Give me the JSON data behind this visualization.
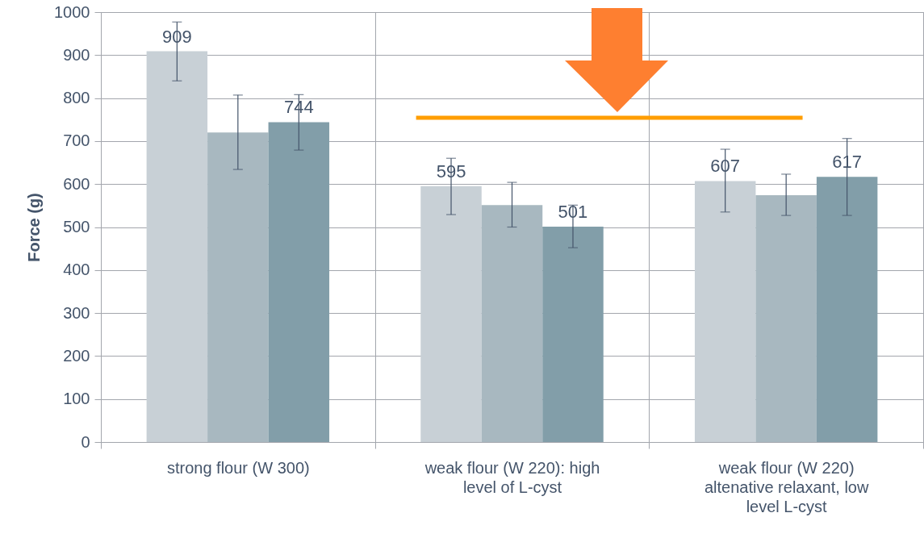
{
  "chart_data": {
    "type": "bar",
    "ylabel": "Force (g)",
    "categories": [
      "strong flour (W 300)",
      "weak flour (W 220): high level of L-cyst",
      "weak flour (W 220) altenative relaxant, low level L-cyst"
    ],
    "series": [
      {
        "color": "#c8d0d6",
        "values": [
          909,
          595,
          607
        ],
        "value_labels": [
          "909",
          "595",
          "607"
        ],
        "errors": [
          [
            840,
            977
          ],
          [
            529,
            660
          ],
          [
            535,
            681
          ]
        ]
      },
      {
        "color": "#a8b8c0",
        "values": [
          720,
          551,
          574
        ],
        "errors": [
          [
            634,
            807
          ],
          [
            500,
            604
          ],
          [
            527,
            623
          ]
        ]
      },
      {
        "color": "#829ea9",
        "values": [
          744,
          501,
          617
        ],
        "value_labels": [
          "744",
          "501",
          "617"
        ],
        "errors": [
          [
            679,
            808
          ],
          [
            452,
            551
          ],
          [
            527,
            706
          ]
        ]
      }
    ],
    "ylim": [
      0,
      1000
    ],
    "yticks": [
      0,
      100,
      200,
      300,
      400,
      500,
      600,
      700,
      800,
      900,
      1000
    ],
    "grid": true,
    "ref_lines": [
      {
        "axis": "y",
        "value": 754,
        "color": "#ff9e00"
      }
    ]
  }
}
